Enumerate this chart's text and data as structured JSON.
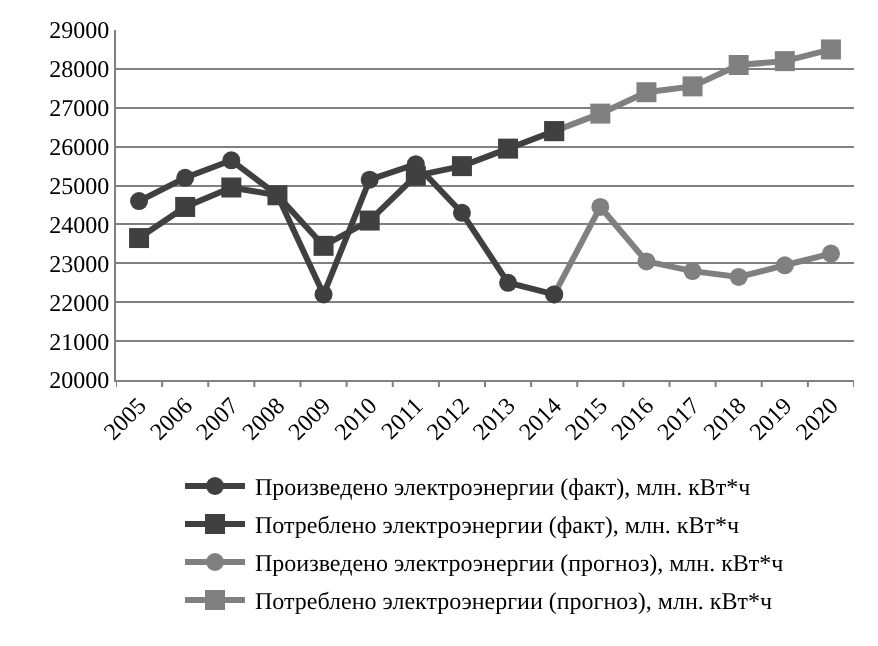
{
  "chart_data": {
    "type": "line",
    "categories": [
      "2005",
      "2006",
      "2007",
      "2008",
      "2009",
      "2010",
      "2011",
      "2012",
      "2013",
      "2014",
      "2015",
      "2016",
      "2017",
      "2018",
      "2019",
      "2020"
    ],
    "ylim": [
      20000,
      29000
    ],
    "yticks": [
      20000,
      21000,
      22000,
      23000,
      24000,
      25000,
      26000,
      27000,
      28000,
      29000
    ],
    "grid": "y",
    "legend": "bottom",
    "series": [
      {
        "name": "Произведено электроэнергии (факт), млн. кВт*ч",
        "color": "#404040",
        "marker": "circle",
        "values": [
          24600,
          25200,
          25650,
          24750,
          22200,
          25150,
          25550,
          24300,
          22500,
          22200,
          null,
          null,
          null,
          null,
          null,
          null
        ]
      },
      {
        "name": "Потреблено электроэнергии (факт), млн. кВт*ч",
        "color": "#404040",
        "marker": "square",
        "values": [
          23650,
          24450,
          24950,
          24750,
          23450,
          24100,
          25250,
          25500,
          25950,
          26400,
          null,
          null,
          null,
          null,
          null,
          null
        ]
      },
      {
        "name": "Произведено электроэнергии (прогноз), млн. кВт*ч",
        "color": "#808080",
        "marker": "circle",
        "values": [
          null,
          null,
          null,
          null,
          null,
          null,
          null,
          null,
          null,
          22200,
          24450,
          23050,
          22800,
          22650,
          22950,
          23250
        ]
      },
      {
        "name": "Потреблено электроэнергии (прогноз), млн. кВт*ч",
        "color": "#808080",
        "marker": "square",
        "values": [
          null,
          null,
          null,
          null,
          null,
          null,
          null,
          null,
          null,
          26400,
          26850,
          27400,
          27550,
          28100,
          28200,
          28500
        ]
      }
    ]
  }
}
